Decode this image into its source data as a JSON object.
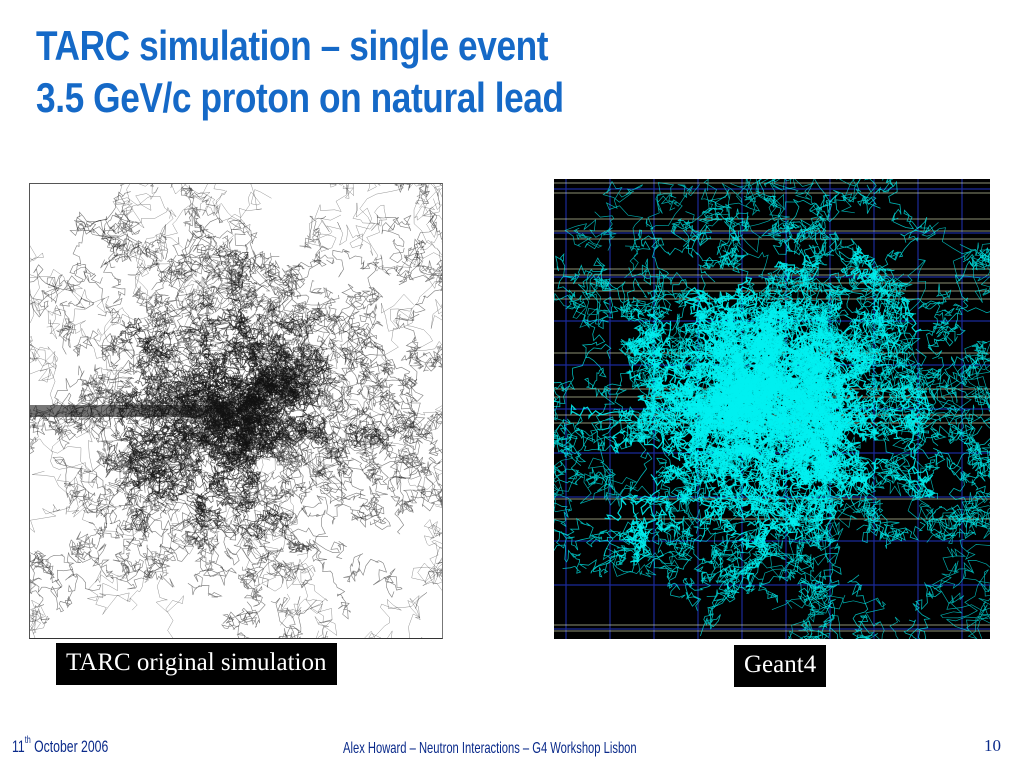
{
  "slide": {
    "title_line1": "TARC simulation – single event",
    "title_line2": "3.5 GeV/c proton on natural lead"
  },
  "figures": {
    "left": {
      "caption": "TARC original simulation",
      "track_color": "#111111",
      "background": "#ffffff"
    },
    "right": {
      "caption": "Geant4",
      "track_color": "#00f0f0",
      "background": "#000000",
      "grid_color_blue": "#1a2a9a",
      "grid_color_lines": "#e8f0c0"
    }
  },
  "footer": {
    "date_day": "11",
    "date_suffix": "th",
    "date_rest": " October 2006",
    "author": "Alex Howard – Neutron Interactions – G4 Workshop Lisbon",
    "page_number": "10"
  }
}
